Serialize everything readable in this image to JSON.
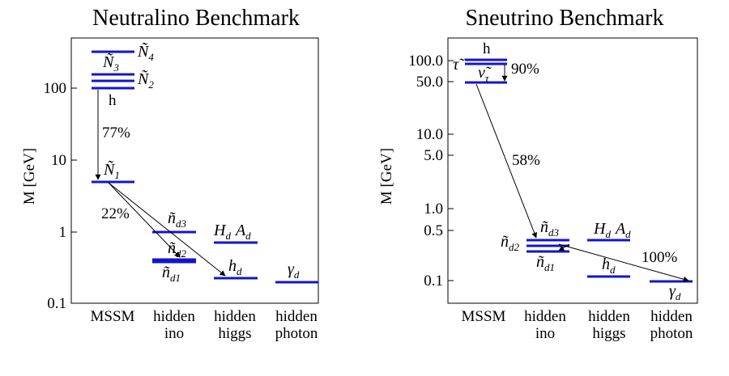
{
  "panels": [
    {
      "title": "Neutralino Benchmark",
      "ylabel": "M [GeV]",
      "ylim": [
        0.1,
        500
      ],
      "yticks": [
        "0.1",
        "1",
        "10",
        "100"
      ],
      "columns": [
        "MSSM",
        "hidden\nino",
        "hidden\nhiggs",
        "hidden\nphoton"
      ],
      "levels": [
        {
          "col": 0,
          "mass": 300,
          "label": "Ñ₄"
        },
        {
          "col": 0,
          "mass": 150,
          "label": "Ñ₃"
        },
        {
          "col": 0,
          "mass": 125,
          "label": "Ñ₂"
        },
        {
          "col": 0,
          "mass": 100,
          "label": "h"
        },
        {
          "col": 0,
          "mass": 5,
          "label": "Ñ₁"
        },
        {
          "col": 1,
          "mass": 1.0,
          "label": "ñ_d3"
        },
        {
          "col": 1,
          "mass": 0.42,
          "label": "ñ_d2"
        },
        {
          "col": 1,
          "mass": 0.39,
          "label": "ñ_d1"
        },
        {
          "col": 2,
          "mass": 0.72,
          "label": "H_d A_d"
        },
        {
          "col": 2,
          "mass": 0.22,
          "label": "h_d"
        },
        {
          "col": 3,
          "mass": 0.2,
          "label": "γ_d"
        }
      ],
      "transitions": [
        {
          "from": "Ñ₂/h",
          "to": "Ñ₁",
          "branching": "77%"
        },
        {
          "from": "Ñ₁",
          "to": "ñ_d2",
          "branching": "22%"
        },
        {
          "from": "Ñ₁",
          "to": "h_d",
          "branching": "22%"
        }
      ]
    },
    {
      "title": "Sneutrino Benchmark",
      "ylabel": "M [GeV]",
      "ylim": [
        0.05,
        200
      ],
      "yticks": [
        "0.1",
        "0.5",
        "1.0",
        "5.0",
        "10.0",
        "50.0",
        "100.0"
      ],
      "columns": [
        "MSSM",
        "hidden\nino",
        "hidden\nhiggs",
        "hidden\nphoton"
      ],
      "levels": [
        {
          "col": 0,
          "mass": 100,
          "label": "h"
        },
        {
          "col": 0,
          "mass": 92,
          "label": "τ̃"
        },
        {
          "col": 0,
          "mass": 50,
          "label": "ν̃_τ"
        },
        {
          "col": 1,
          "mass": 0.34,
          "label": "ñ_d3"
        },
        {
          "col": 1,
          "mass": 0.3,
          "label": "ñ_d2"
        },
        {
          "col": 1,
          "mass": 0.26,
          "label": "ñ_d1"
        },
        {
          "col": 2,
          "mass": 0.34,
          "label": "H_d A_d"
        },
        {
          "col": 2,
          "mass": 0.12,
          "label": "h_d"
        },
        {
          "col": 3,
          "mass": 0.1,
          "label": "γ_d"
        }
      ],
      "transitions": [
        {
          "from": "τ̃",
          "to": "ν̃_τ",
          "branching": "90%"
        },
        {
          "from": "ν̃_τ",
          "to": "ñ_d3",
          "branching": "58%"
        },
        {
          "from": "ñ_d3",
          "to": "ñ_d1",
          "branching": ""
        },
        {
          "from": "ñ_d",
          "to": "γ_d",
          "branching": "100%"
        }
      ]
    }
  ],
  "labels": {
    "N4": {
      "t": "Ñ",
      "s": "4"
    },
    "N3": {
      "t": "Ñ",
      "s": "3"
    },
    "N2": {
      "t": "Ñ",
      "s": "2"
    },
    "N1": {
      "t": "Ñ",
      "s": "1"
    },
    "h": "h",
    "nd3": {
      "t": "ñ",
      "s": "d3"
    },
    "nd2": {
      "t": "ñ",
      "s": "d2"
    },
    "nd1": {
      "t": "ñ",
      "s": "d1"
    },
    "Hd": {
      "t": "H",
      "s": "d"
    },
    "Ad": {
      "t": "A",
      "s": "d"
    },
    "hd": {
      "t": "h",
      "s": "d"
    },
    "gd": {
      "t": "γ",
      "s": "d"
    },
    "stau": "τ̃",
    "snu": {
      "t": "ν̃",
      "s": "τ"
    }
  },
  "colors": {
    "level": "#1414cc",
    "axis": "#000000"
  }
}
